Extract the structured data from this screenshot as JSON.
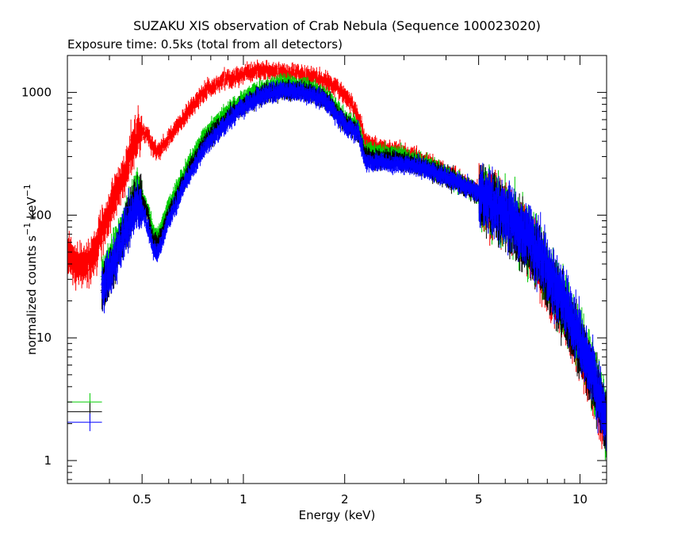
{
  "chart_data": {
    "type": "scatter",
    "title": "SUZAKU XIS observation of Crab Nebula (Sequence 100023020)",
    "subtitle": "Exposure time: 0.5ks (total from all detectors)",
    "xlabel": "Energy (keV)",
    "ylabel": {
      "base": "normalized counts s",
      "exp1": "−1",
      "mid": " keV",
      "exp2": "−1"
    },
    "xscale": "log",
    "yscale": "log",
    "xlim": [
      0.3,
      12
    ],
    "ylim": [
      0.65,
      2000
    ],
    "x_ticks": [
      {
        "value": 0.5,
        "label": "0.5"
      },
      {
        "value": 1,
        "label": "1"
      },
      {
        "value": 2,
        "label": "2"
      },
      {
        "value": 5,
        "label": "5"
      },
      {
        "value": 10,
        "label": "10"
      }
    ],
    "y_ticks": [
      {
        "value": 1,
        "label": "1"
      },
      {
        "value": 10,
        "label": "10"
      },
      {
        "value": 100,
        "label": "100"
      },
      {
        "value": 1000,
        "label": "1000"
      }
    ],
    "grid": false,
    "legend_markers": [
      {
        "color": "#00cc00",
        "y": 3.0,
        "x": 0.35
      },
      {
        "color": "#000000",
        "y": 2.5,
        "x": 0.35
      },
      {
        "color": "#0000ff",
        "y": 2.05,
        "x": 0.35
      }
    ],
    "series": [
      {
        "color": "#ff0000",
        "points": [
          [
            0.3,
            48
          ],
          [
            0.32,
            40
          ],
          [
            0.35,
            42
          ],
          [
            0.37,
            60
          ],
          [
            0.4,
            110
          ],
          [
            0.43,
            170
          ],
          [
            0.46,
            300
          ],
          [
            0.48,
            420
          ],
          [
            0.5,
            470
          ],
          [
            0.52,
            450
          ],
          [
            0.54,
            360
          ],
          [
            0.56,
            330
          ],
          [
            0.58,
            370
          ],
          [
            0.6,
            430
          ],
          [
            0.65,
            560
          ],
          [
            0.7,
            760
          ],
          [
            0.75,
            950
          ],
          [
            0.8,
            1100
          ],
          [
            0.9,
            1300
          ],
          [
            1.0,
            1420
          ],
          [
            1.1,
            1530
          ],
          [
            1.2,
            1500
          ],
          [
            1.3,
            1480
          ],
          [
            1.5,
            1400
          ],
          [
            1.6,
            1340
          ],
          [
            1.7,
            1280
          ],
          [
            1.8,
            1180
          ],
          [
            1.9,
            1080
          ],
          [
            2.0,
            950
          ],
          [
            2.1,
            800
          ],
          [
            2.2,
            620
          ],
          [
            2.3,
            400
          ],
          [
            2.5,
            355
          ],
          [
            3.0,
            320
          ],
          [
            3.5,
            270
          ],
          [
            4.0,
            225
          ],
          [
            4.5,
            185
          ],
          [
            5.0,
            150
          ],
          [
            5.5,
            120
          ],
          [
            6.0,
            98
          ],
          [
            6.5,
            76
          ],
          [
            7.0,
            56
          ],
          [
            7.5,
            40
          ],
          [
            8.0,
            29
          ],
          [
            8.5,
            21
          ],
          [
            9.0,
            15.5
          ],
          [
            9.5,
            11
          ],
          [
            10.0,
            8
          ],
          [
            10.5,
            5.6
          ],
          [
            11.0,
            3.9
          ],
          [
            11.5,
            2.6
          ],
          [
            12.0,
            1.6
          ]
        ]
      },
      {
        "color": "#00cc00",
        "points": [
          [
            0.38,
            28
          ],
          [
            0.4,
            40
          ],
          [
            0.43,
            65
          ],
          [
            0.46,
            110
          ],
          [
            0.48,
            150
          ],
          [
            0.5,
            140
          ],
          [
            0.52,
            110
          ],
          [
            0.54,
            70
          ],
          [
            0.56,
            68
          ],
          [
            0.58,
            90
          ],
          [
            0.6,
            115
          ],
          [
            0.65,
            190
          ],
          [
            0.7,
            290
          ],
          [
            0.75,
            400
          ],
          [
            0.8,
            510
          ],
          [
            0.9,
            700
          ],
          [
            1.0,
            880
          ],
          [
            1.1,
            1020
          ],
          [
            1.2,
            1120
          ],
          [
            1.3,
            1170
          ],
          [
            1.5,
            1130
          ],
          [
            1.6,
            1070
          ],
          [
            1.7,
            980
          ],
          [
            1.8,
            880
          ],
          [
            1.9,
            720
          ],
          [
            2.0,
            620
          ],
          [
            2.1,
            560
          ],
          [
            2.2,
            500
          ],
          [
            2.3,
            330
          ],
          [
            2.5,
            320
          ],
          [
            3.0,
            300
          ],
          [
            3.5,
            255
          ],
          [
            4.0,
            215
          ],
          [
            4.5,
            180
          ],
          [
            5.0,
            150
          ],
          [
            5.5,
            125
          ],
          [
            6.0,
            102
          ],
          [
            6.5,
            82
          ],
          [
            7.0,
            63
          ],
          [
            7.5,
            47
          ],
          [
            8.0,
            34
          ],
          [
            8.5,
            25
          ],
          [
            9.0,
            18
          ],
          [
            9.5,
            13
          ],
          [
            10.0,
            9.5
          ],
          [
            10.5,
            6.8
          ],
          [
            11.0,
            4.8
          ],
          [
            11.5,
            3.2
          ],
          [
            12.0,
            2.0
          ]
        ]
      },
      {
        "color": "#000000",
        "points": [
          [
            0.38,
            22
          ],
          [
            0.4,
            33
          ],
          [
            0.43,
            60
          ],
          [
            0.46,
            100
          ],
          [
            0.48,
            140
          ],
          [
            0.5,
            130
          ],
          [
            0.52,
            100
          ],
          [
            0.54,
            60
          ],
          [
            0.56,
            58
          ],
          [
            0.58,
            80
          ],
          [
            0.6,
            100
          ],
          [
            0.65,
            165
          ],
          [
            0.7,
            250
          ],
          [
            0.75,
            350
          ],
          [
            0.8,
            440
          ],
          [
            0.9,
            620
          ],
          [
            1.0,
            780
          ],
          [
            1.1,
            920
          ],
          [
            1.2,
            1010
          ],
          [
            1.3,
            1050
          ],
          [
            1.5,
            1020
          ],
          [
            1.6,
            980
          ],
          [
            1.7,
            900
          ],
          [
            1.8,
            820
          ],
          [
            1.9,
            650
          ],
          [
            2.0,
            560
          ],
          [
            2.1,
            520
          ],
          [
            2.2,
            470
          ],
          [
            2.3,
            300
          ],
          [
            2.5,
            290
          ],
          [
            3.0,
            275
          ],
          [
            3.5,
            240
          ],
          [
            4.0,
            205
          ],
          [
            4.5,
            172
          ],
          [
            5.0,
            145
          ],
          [
            5.5,
            120
          ],
          [
            6.0,
            98
          ],
          [
            6.5,
            78
          ],
          [
            7.0,
            60
          ],
          [
            7.5,
            45
          ],
          [
            8.0,
            32
          ],
          [
            8.5,
            23
          ],
          [
            9.0,
            17
          ],
          [
            9.5,
            12
          ],
          [
            10.0,
            8.8
          ],
          [
            10.5,
            6.2
          ],
          [
            11.0,
            4.3
          ],
          [
            11.5,
            2.9
          ],
          [
            12.0,
            1.8
          ]
        ]
      },
      {
        "color": "#0000ff",
        "points": [
          [
            0.38,
            25
          ],
          [
            0.4,
            35
          ],
          [
            0.43,
            55
          ],
          [
            0.46,
            90
          ],
          [
            0.48,
            120
          ],
          [
            0.5,
            110
          ],
          [
            0.52,
            80
          ],
          [
            0.54,
            52
          ],
          [
            0.56,
            50
          ],
          [
            0.58,
            70
          ],
          [
            0.6,
            90
          ],
          [
            0.65,
            150
          ],
          [
            0.7,
            230
          ],
          [
            0.75,
            320
          ],
          [
            0.8,
            410
          ],
          [
            0.9,
            580
          ],
          [
            1.0,
            760
          ],
          [
            1.1,
            900
          ],
          [
            1.2,
            990
          ],
          [
            1.3,
            1030
          ],
          [
            1.5,
            1000
          ],
          [
            1.6,
            950
          ],
          [
            1.7,
            880
          ],
          [
            1.8,
            800
          ],
          [
            1.9,
            640
          ],
          [
            2.0,
            540
          ],
          [
            2.1,
            500
          ],
          [
            2.2,
            460
          ],
          [
            2.3,
            270
          ],
          [
            2.5,
            270
          ],
          [
            3.0,
            260
          ],
          [
            3.5,
            235
          ],
          [
            4.0,
            205
          ],
          [
            4.5,
            178
          ],
          [
            5.0,
            152
          ],
          [
            5.5,
            128
          ],
          [
            6.0,
            106
          ],
          [
            6.5,
            85
          ],
          [
            7.0,
            66
          ],
          [
            7.5,
            50
          ],
          [
            8.0,
            36
          ],
          [
            8.5,
            26
          ],
          [
            9.0,
            19
          ],
          [
            9.5,
            13.5
          ],
          [
            10.0,
            9.7
          ],
          [
            10.5,
            6.8
          ],
          [
            11.0,
            4.7
          ],
          [
            11.5,
            3.1
          ],
          [
            12.0,
            1.9
          ]
        ]
      }
    ]
  }
}
